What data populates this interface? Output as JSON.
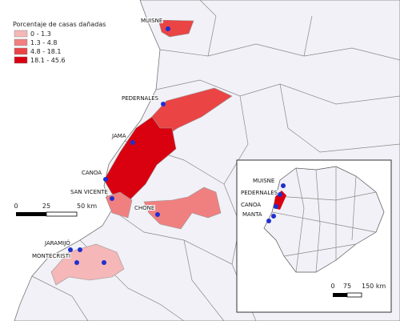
{
  "legend": {
    "title": "Porcentaje de casas dañadas",
    "classes": [
      {
        "label": "0 - 1.3",
        "color": "#f5b7b7"
      },
      {
        "label": "1.3 - 4.8",
        "color": "#f08080"
      },
      {
        "label": "4.8 - 18.1",
        "color": "#ea4444"
      },
      {
        "label": "18.1 - 45.6",
        "color": "#d9000f"
      }
    ]
  },
  "places": [
    "MUISNE",
    "PEDERNALES",
    "JAMA",
    "CANOA",
    "SAN VICENTE",
    "CHONE",
    "JARAMIJÓ",
    "MONTECRISTI"
  ],
  "scale": [
    "0",
    "25",
    "50 km"
  ],
  "inset": {
    "places": [
      "MUISNE",
      "PEDERNALES",
      "CANOA",
      "MANTA"
    ],
    "scale": [
      "0",
      "75",
      "150 km"
    ]
  }
}
